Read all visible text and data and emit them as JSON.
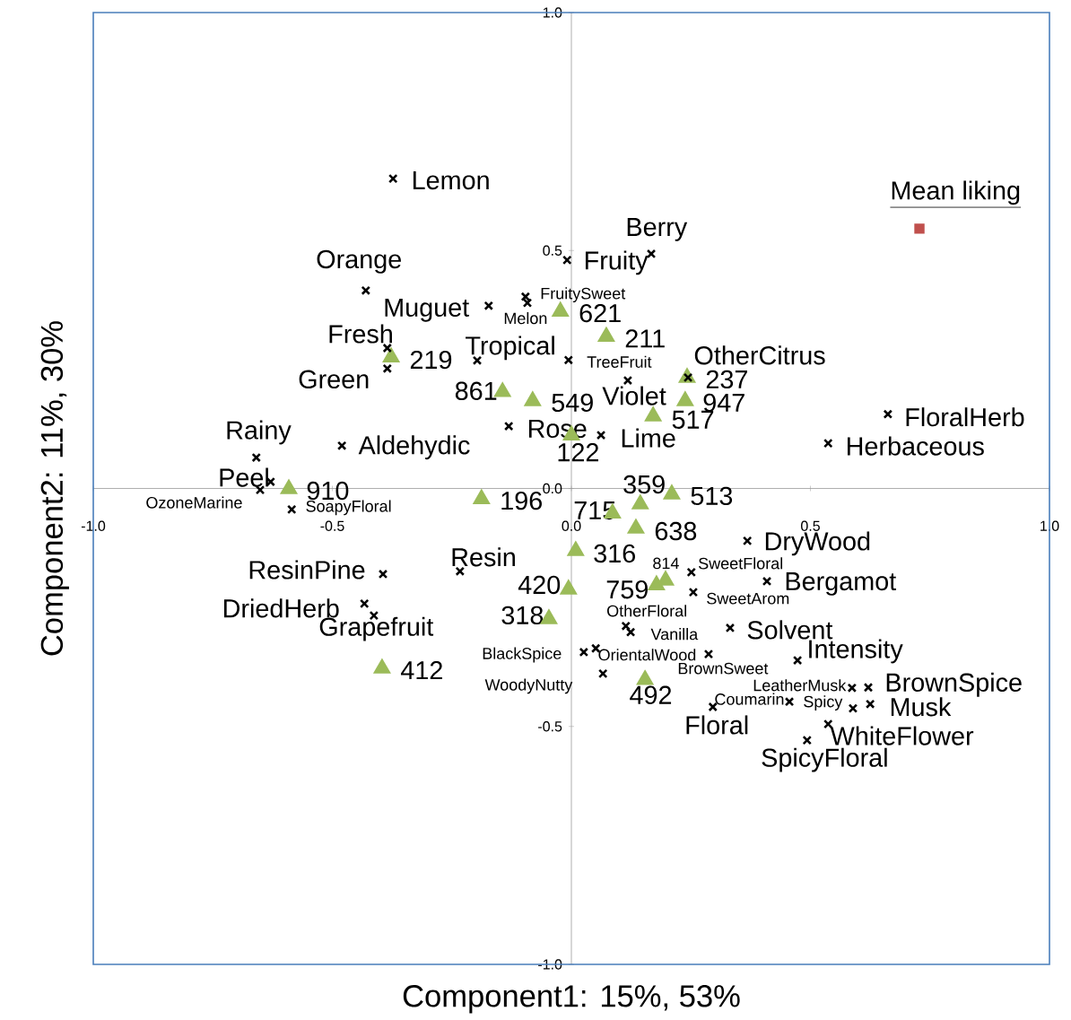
{
  "chart_data": {
    "type": "scatter",
    "xlabel": "Component1: 15%, 53%",
    "ylabel": "Component2: 11%, 30%",
    "xlim": [
      -1.0,
      1.0
    ],
    "ylim": [
      -1.0,
      1.0
    ],
    "xticks": [
      {
        "value": -1.0,
        "label": "-1.0"
      },
      {
        "value": -0.5,
        "label": "-0.5"
      },
      {
        "value": 0,
        "label": "0.0"
      },
      {
        "value": 0.5,
        "label": "0.5"
      },
      {
        "value": 1.0,
        "label": "1.0"
      }
    ],
    "yticks": [
      {
        "value": -1.0,
        "label": "-1.0"
      },
      {
        "value": -0.5,
        "label": "-0.5"
      },
      {
        "value": 0,
        "label": "0.0"
      },
      {
        "value": 0.5,
        "label": "0.5"
      },
      {
        "value": 1.0,
        "label": "1.0"
      }
    ],
    "series": [
      {
        "marker": "cross",
        "color": "#000000",
        "x": [
          -0.373,
          -0.43,
          -0.173,
          -0.092,
          -0.096,
          -0.009,
          0.167,
          -0.385,
          -0.385,
          -0.197,
          -0.006,
          0.118,
          0.244,
          -0.131,
          0.062,
          -0.48,
          -0.659,
          -0.629,
          -0.651,
          -0.585,
          0.662,
          0.537,
          -0.394,
          -0.233,
          -0.433,
          -0.413,
          0.368,
          0.251,
          0.255,
          0.409,
          0.114,
          0.124,
          0.332,
          0.026,
          0.051,
          0.066,
          0.287,
          0.473,
          0.587,
          0.621,
          0.456,
          0.589,
          0.625,
          0.296,
          0.537,
          0.493
        ],
        "values": [
          0.651,
          0.416,
          0.384,
          0.39,
          0.403,
          0.48,
          0.493,
          0.295,
          0.252,
          0.269,
          0.27,
          0.227,
          0.233,
          0.131,
          0.112,
          0.09,
          0.065,
          0.014,
          -0.003,
          -0.044,
          0.156,
          0.095,
          -0.18,
          -0.174,
          -0.242,
          -0.267,
          -0.11,
          -0.176,
          -0.218,
          -0.195,
          -0.289,
          -0.302,
          -0.293,
          -0.344,
          -0.336,
          -0.389,
          -0.348,
          -0.361,
          -0.419,
          -0.418,
          -0.448,
          -0.462,
          -0.453,
          -0.459,
          -0.495,
          -0.529
        ]
      },
      {
        "marker": "triangle",
        "color": "#9bbb59",
        "x": [
          -0.023,
          0.073,
          -0.377,
          -0.144,
          -0.081,
          0.242,
          0.238,
          0.171,
          0.0,
          -0.591,
          -0.188,
          0.144,
          0.21,
          0.086,
          0.135,
          0.009,
          0.197,
          0.178,
          -0.006,
          -0.047,
          -0.396,
          0.154
        ],
        "values": [
          0.372,
          0.319,
          0.276,
          0.203,
          0.184,
          0.233,
          0.184,
          0.152,
          0.112,
          -0.001,
          -0.022,
          -0.033,
          -0.012,
          -0.052,
          -0.084,
          -0.131,
          -0.193,
          -0.203,
          -0.212,
          -0.274,
          -0.378,
          -0.402
        ]
      },
      {
        "name": "Mean liking",
        "marker": "square",
        "color": "#c0504d",
        "x": [
          0.728
        ],
        "values": [
          0.546
        ]
      }
    ],
    "annotations": [
      {
        "text": "Lemon",
        "x": -0.373,
        "y": 0.651
      },
      {
        "text": "Orange",
        "x": -0.43,
        "y": 0.416
      },
      {
        "text": "Muguet",
        "x": -0.173,
        "y": 0.384
      },
      {
        "text": "Melon",
        "x": -0.092,
        "y": 0.39
      },
      {
        "text": "FruitySweet",
        "x": -0.096,
        "y": 0.403
      },
      {
        "text": "Fruity",
        "x": -0.009,
        "y": 0.48
      },
      {
        "text": "Berry",
        "x": 0.167,
        "y": 0.493
      },
      {
        "text": "Fresh",
        "x": -0.385,
        "y": 0.295
      },
      {
        "text": "Green",
        "x": -0.385,
        "y": 0.252
      },
      {
        "text": "Tropical",
        "x": -0.197,
        "y": 0.269
      },
      {
        "text": "TreeFruit",
        "x": -0.006,
        "y": 0.27
      },
      {
        "text": "Violet",
        "x": 0.118,
        "y": 0.227
      },
      {
        "text": "OtherCitrus",
        "x": 0.244,
        "y": 0.233
      },
      {
        "text": "Rose",
        "x": -0.131,
        "y": 0.131
      },
      {
        "text": "Lime",
        "x": 0.062,
        "y": 0.112
      },
      {
        "text": "Aldehydic",
        "x": -0.48,
        "y": 0.09
      },
      {
        "text": "Rainy",
        "x": -0.659,
        "y": 0.065
      },
      {
        "text": "Peel",
        "x": -0.629,
        "y": 0.014
      },
      {
        "text": "OzoneMarine",
        "x": -0.651,
        "y": -0.003
      },
      {
        "text": "SoapyFloral",
        "x": -0.585,
        "y": -0.044
      },
      {
        "text": "FloralHerb",
        "x": 0.662,
        "y": 0.156
      },
      {
        "text": "Herbaceous",
        "x": 0.537,
        "y": 0.095
      },
      {
        "text": "ResinPine",
        "x": -0.394,
        "y": -0.18
      },
      {
        "text": "Resin",
        "x": -0.233,
        "y": -0.174
      },
      {
        "text": "DriedHerb",
        "x": -0.433,
        "y": -0.242
      },
      {
        "text": "Grapefruit",
        "x": -0.413,
        "y": -0.267
      },
      {
        "text": "DryWood",
        "x": 0.368,
        "y": -0.11
      },
      {
        "text": "SweetFloral",
        "x": 0.251,
        "y": -0.176
      },
      {
        "text": "SweetArom",
        "x": 0.255,
        "y": -0.218
      },
      {
        "text": "Bergamot",
        "x": 0.409,
        "y": -0.195
      },
      {
        "text": "OtherFloral",
        "x": 0.114,
        "y": -0.289
      },
      {
        "text": "Vanilla",
        "x": 0.124,
        "y": -0.302
      },
      {
        "text": "Solvent",
        "x": 0.332,
        "y": -0.293
      },
      {
        "text": "BlackSpice",
        "x": 0.026,
        "y": -0.344
      },
      {
        "text": "OrientalWood",
        "x": 0.051,
        "y": -0.336
      },
      {
        "text": "WoodyNutty",
        "x": 0.066,
        "y": -0.389
      },
      {
        "text": "BrownSweet",
        "x": 0.287,
        "y": -0.348
      },
      {
        "text": "Intensity",
        "x": 0.473,
        "y": -0.361
      },
      {
        "text": "LeatherMusk",
        "x": 0.587,
        "y": -0.419
      },
      {
        "text": "BrownSpice",
        "x": 0.621,
        "y": -0.418
      },
      {
        "text": "Coumarin",
        "x": 0.456,
        "y": -0.448
      },
      {
        "text": "Spicy",
        "x": 0.589,
        "y": -0.462
      },
      {
        "text": "Musk",
        "x": 0.625,
        "y": -0.453
      },
      {
        "text": "Floral",
        "x": 0.296,
        "y": -0.459
      },
      {
        "text": "WhiteFlower",
        "x": 0.537,
        "y": -0.495
      },
      {
        "text": "SpicyFloral",
        "x": 0.493,
        "y": -0.529
      },
      {
        "text": "621",
        "x": -0.023,
        "y": 0.372
      },
      {
        "text": "211",
        "x": 0.073,
        "y": 0.319
      },
      {
        "text": "219",
        "x": -0.377,
        "y": 0.276
      },
      {
        "text": "861",
        "x": -0.144,
        "y": 0.203
      },
      {
        "text": "549",
        "x": -0.081,
        "y": 0.184
      },
      {
        "text": "237",
        "x": 0.242,
        "y": 0.233
      },
      {
        "text": "947",
        "x": 0.238,
        "y": 0.184
      },
      {
        "text": "517",
        "x": 0.171,
        "y": 0.152
      },
      {
        "text": "122",
        "x": 0.0,
        "y": 0.112
      },
      {
        "text": "910",
        "x": -0.591,
        "y": -0.001
      },
      {
        "text": "196",
        "x": -0.188,
        "y": -0.022
      },
      {
        "text": "359",
        "x": 0.144,
        "y": -0.033
      },
      {
        "text": "513",
        "x": 0.21,
        "y": -0.012
      },
      {
        "text": "715",
        "x": 0.086,
        "y": -0.052
      },
      {
        "text": "638",
        "x": 0.135,
        "y": -0.084
      },
      {
        "text": "316",
        "x": 0.009,
        "y": -0.131
      },
      {
        "text": "814",
        "x": 0.197,
        "y": -0.193
      },
      {
        "text": "759",
        "x": 0.178,
        "y": -0.203
      },
      {
        "text": "420",
        "x": -0.006,
        "y": -0.212
      },
      {
        "text": "318",
        "x": -0.047,
        "y": -0.274
      },
      {
        "text": "412",
        "x": -0.396,
        "y": -0.378
      },
      {
        "text": "492",
        "x": 0.154,
        "y": -0.402
      }
    ]
  }
}
